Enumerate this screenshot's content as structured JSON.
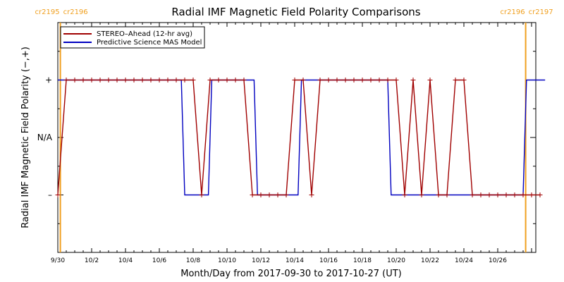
{
  "chart_data": {
    "type": "line",
    "title": "Radial IMF Magnetic Field Polarity Comparisons",
    "xlabel": "Month/Day from 2017-09-30 to 2017-10-27 (UT)",
    "ylabel": "Radial IMF Magnetic Field Polarity (−,+)",
    "x_range_days": [
      0,
      28
    ],
    "x_ticks": [
      {
        "day": 0,
        "label": "9/30"
      },
      {
        "day": 2,
        "label": "10/2"
      },
      {
        "day": 4,
        "label": "10/4"
      },
      {
        "day": 6,
        "label": "10/6"
      },
      {
        "day": 8,
        "label": "10/8"
      },
      {
        "day": 10,
        "label": "10/10"
      },
      {
        "day": 12,
        "label": "10/12"
      },
      {
        "day": 14,
        "label": "10/14"
      },
      {
        "day": 16,
        "label": "10/16"
      },
      {
        "day": 18,
        "label": "10/18"
      },
      {
        "day": 20,
        "label": "10/20"
      },
      {
        "day": 22,
        "label": "10/22"
      },
      {
        "day": 24,
        "label": "10/24"
      },
      {
        "day": 26,
        "label": "10/26"
      }
    ],
    "y_range": [
      -2,
      2
    ],
    "y_ticks": [
      {
        "value": 1,
        "label": "+"
      },
      {
        "value": 0,
        "label": "N/A"
      },
      {
        "value": -1,
        "label": "–"
      }
    ],
    "carrington_markers": [
      {
        "day": 0.15,
        "label_left": "cr2195",
        "label_right": "cr2196",
        "color": "#f0a020"
      },
      {
        "day": 27.65,
        "label_left": "cr2196",
        "label_right": "cr2197",
        "color": "#f0a020"
      }
    ],
    "legend": {
      "placement": "top-left"
    },
    "series": [
      {
        "name": "STEREO–Ahead (12-hr avg)",
        "color": "#a00000",
        "marker": "plus",
        "points": [
          [
            0,
            -1
          ],
          [
            0.5,
            1
          ],
          [
            1,
            1
          ],
          [
            1.5,
            1
          ],
          [
            2,
            1
          ],
          [
            2.5,
            1
          ],
          [
            3,
            1
          ],
          [
            3.5,
            1
          ],
          [
            4,
            1
          ],
          [
            4.5,
            1
          ],
          [
            5,
            1
          ],
          [
            5.5,
            1
          ],
          [
            6,
            1
          ],
          [
            6.5,
            1
          ],
          [
            7,
            1
          ],
          [
            7.5,
            1
          ],
          [
            8,
            1
          ],
          [
            8.5,
            -1
          ],
          [
            9,
            1
          ],
          [
            9.5,
            1
          ],
          [
            10,
            1
          ],
          [
            10.5,
            1
          ],
          [
            11,
            1
          ],
          [
            11.5,
            -1
          ],
          [
            12,
            -1
          ],
          [
            12.5,
            -1
          ],
          [
            13,
            -1
          ],
          [
            13.5,
            -1
          ],
          [
            14,
            1
          ],
          [
            14.5,
            1
          ],
          [
            15,
            -1
          ],
          [
            15.5,
            1
          ],
          [
            16,
            1
          ],
          [
            16.5,
            1
          ],
          [
            17,
            1
          ],
          [
            17.5,
            1
          ],
          [
            18,
            1
          ],
          [
            18.5,
            1
          ],
          [
            19,
            1
          ],
          [
            19.5,
            1
          ],
          [
            20,
            1
          ],
          [
            20.5,
            -1
          ],
          [
            21,
            1
          ],
          [
            21.5,
            -1
          ],
          [
            22,
            1
          ],
          [
            22.5,
            -1
          ],
          [
            23,
            -1
          ],
          [
            23.5,
            1
          ],
          [
            24,
            1
          ],
          [
            24.5,
            -1
          ],
          [
            25,
            -1
          ],
          [
            25.5,
            -1
          ],
          [
            26,
            -1
          ],
          [
            26.5,
            -1
          ],
          [
            27,
            -1
          ],
          [
            27.5,
            -1
          ],
          [
            28,
            -1
          ],
          [
            28.5,
            -1
          ]
        ]
      },
      {
        "name": "Predictive Science MAS Model",
        "color": "#0000c0",
        "marker": "none",
        "points": [
          [
            0,
            1
          ],
          [
            7.3,
            1
          ],
          [
            7.5,
            -1
          ],
          [
            8.9,
            -1
          ],
          [
            9.1,
            1
          ],
          [
            11.6,
            1
          ],
          [
            11.8,
            -1
          ],
          [
            14.2,
            -1
          ],
          [
            14.4,
            1
          ],
          [
            19.5,
            1
          ],
          [
            19.7,
            -1
          ],
          [
            27.5,
            -1
          ],
          [
            27.7,
            1
          ],
          [
            28.8,
            1
          ]
        ]
      }
    ]
  }
}
